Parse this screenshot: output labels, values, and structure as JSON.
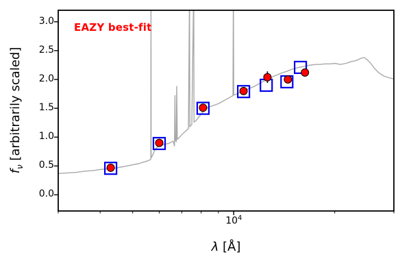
{
  "figure": {
    "annotation": "EAZY best-fit",
    "annotation_color": "#ff0000",
    "xlabel": {
      "symbol": "λ",
      "rest": " [Å]"
    },
    "ylabel": {
      "symbol": "f",
      "sub": "ν",
      "rest": " [arbitrarily scaled]"
    },
    "x_tick": {
      "base": "10",
      "exp": "4"
    }
  },
  "chart_data": {
    "type": "line",
    "title": "EAZY best-fit",
    "xlabel": "λ [Å]",
    "ylabel": "f_ν [arbitrarily scaled]",
    "xscale": "log",
    "xlim": [
      3000,
      30000
    ],
    "ylim": [
      -0.28,
      3.2
    ],
    "grid": false,
    "legend": "none",
    "y_ticks": [
      0.0,
      0.5,
      1.0,
      1.5,
      2.0,
      2.5,
      3.0
    ],
    "x_major_ticks": [
      10000
    ],
    "x_minor_ticks": [
      3000,
      4000,
      5000,
      6000,
      7000,
      8000,
      9000,
      20000,
      30000
    ],
    "series": [
      {
        "name": "best-fit-template-spectrum",
        "type": "line",
        "color": "#a8a8a8",
        "points": [
          [
            3000,
            0.37
          ],
          [
            3200,
            0.38
          ],
          [
            3400,
            0.39
          ],
          [
            3600,
            0.41
          ],
          [
            3800,
            0.42
          ],
          [
            4000,
            0.44
          ],
          [
            4200,
            0.45
          ],
          [
            4400,
            0.46
          ],
          [
            4600,
            0.48
          ],
          [
            4800,
            0.5
          ],
          [
            5000,
            0.52
          ],
          [
            5200,
            0.54
          ],
          [
            5400,
            0.57
          ],
          [
            5550,
            0.59
          ],
          [
            5640,
            0.61
          ],
          [
            5663,
            0.62
          ],
          [
            5668,
            3.6
          ],
          [
            5675,
            0.64
          ],
          [
            5750,
            0.7
          ],
          [
            5820,
            0.78
          ],
          [
            5900,
            0.82
          ],
          [
            6000,
            0.85
          ],
          [
            6100,
            0.86
          ],
          [
            6250,
            0.88
          ],
          [
            6400,
            0.89
          ],
          [
            6500,
            0.91
          ],
          [
            6600,
            0.93
          ],
          [
            6660,
            0.85
          ],
          [
            6680,
            1.72
          ],
          [
            6700,
            0.95
          ],
          [
            6740,
            0.92
          ],
          [
            6765,
            1.88
          ],
          [
            6790,
            0.96
          ],
          [
            6900,
            1.0
          ],
          [
            7050,
            1.06
          ],
          [
            7200,
            1.11
          ],
          [
            7330,
            1.15
          ],
          [
            7385,
            3.6
          ],
          [
            7400,
            1.18
          ],
          [
            7500,
            1.22
          ],
          [
            7600,
            3.6
          ],
          [
            7615,
            1.26
          ],
          [
            7700,
            1.28
          ],
          [
            7800,
            1.32
          ],
          [
            7950,
            1.38
          ],
          [
            8100,
            1.44
          ],
          [
            8250,
            1.49
          ],
          [
            8400,
            1.52
          ],
          [
            8600,
            1.54
          ],
          [
            8800,
            1.56
          ],
          [
            9000,
            1.58
          ],
          [
            9200,
            1.61
          ],
          [
            9400,
            1.64
          ],
          [
            9600,
            1.67
          ],
          [
            9800,
            1.7
          ],
          [
            9950,
            1.72
          ],
          [
            9975,
            3.6
          ],
          [
            10000,
            1.73
          ],
          [
            10200,
            1.75
          ],
          [
            10500,
            1.78
          ],
          [
            10800,
            1.81
          ],
          [
            11200,
            1.85
          ],
          [
            11600,
            1.89
          ],
          [
            12000,
            1.94
          ],
          [
            12400,
            1.98
          ],
          [
            12800,
            2.02
          ],
          [
            13200,
            2.06
          ],
          [
            13600,
            2.09
          ],
          [
            14000,
            2.12
          ],
          [
            14400,
            2.14
          ],
          [
            14800,
            2.17
          ],
          [
            15200,
            2.19
          ],
          [
            15600,
            2.21
          ],
          [
            16000,
            2.22
          ],
          [
            16500,
            2.24
          ],
          [
            17000,
            2.25
          ],
          [
            17500,
            2.26
          ],
          [
            18000,
            2.26
          ],
          [
            18700,
            2.27
          ],
          [
            19400,
            2.27
          ],
          [
            20000,
            2.28
          ],
          [
            20800,
            2.26
          ],
          [
            21600,
            2.28
          ],
          [
            22400,
            2.31
          ],
          [
            23200,
            2.33
          ],
          [
            24000,
            2.37
          ],
          [
            24500,
            2.38
          ],
          [
            25000,
            2.34
          ],
          [
            25600,
            2.28
          ],
          [
            26200,
            2.2
          ],
          [
            27000,
            2.12
          ],
          [
            28000,
            2.06
          ],
          [
            29000,
            2.03
          ],
          [
            30000,
            2.01
          ]
        ]
      },
      {
        "name": "model-photometry",
        "type": "scatter",
        "marker": "open-square",
        "color": "#0000ee",
        "x": [
          4300,
          6000,
          8100,
          10700,
          12500,
          14400,
          15800
        ],
        "y": [
          0.46,
          0.89,
          1.5,
          1.79,
          1.9,
          1.96,
          2.21
        ]
      },
      {
        "name": "observed-photometry",
        "type": "scatter",
        "marker": "filled-circle",
        "color": "#ff0000",
        "edge": "#000000",
        "x": [
          4300,
          6000,
          8100,
          10700,
          12600,
          14500,
          16300
        ],
        "y": [
          0.47,
          0.9,
          1.51,
          1.8,
          2.04,
          2.0,
          2.12
        ],
        "yerr": [
          0.05,
          0.05,
          0.05,
          0.05,
          0.1,
          0.06,
          0.07
        ]
      }
    ]
  }
}
